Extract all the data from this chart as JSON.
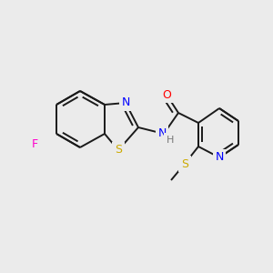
{
  "background_color": "#ebebeb",
  "bond_color": "#1a1a1a",
  "atom_colors": {
    "F": "#ff00cc",
    "S": "#ccaa00",
    "N": "#0000ff",
    "O": "#ff0000",
    "H": "#777777",
    "C": "#1a1a1a"
  },
  "figsize": [
    3.0,
    3.0
  ],
  "dpi": 100
}
